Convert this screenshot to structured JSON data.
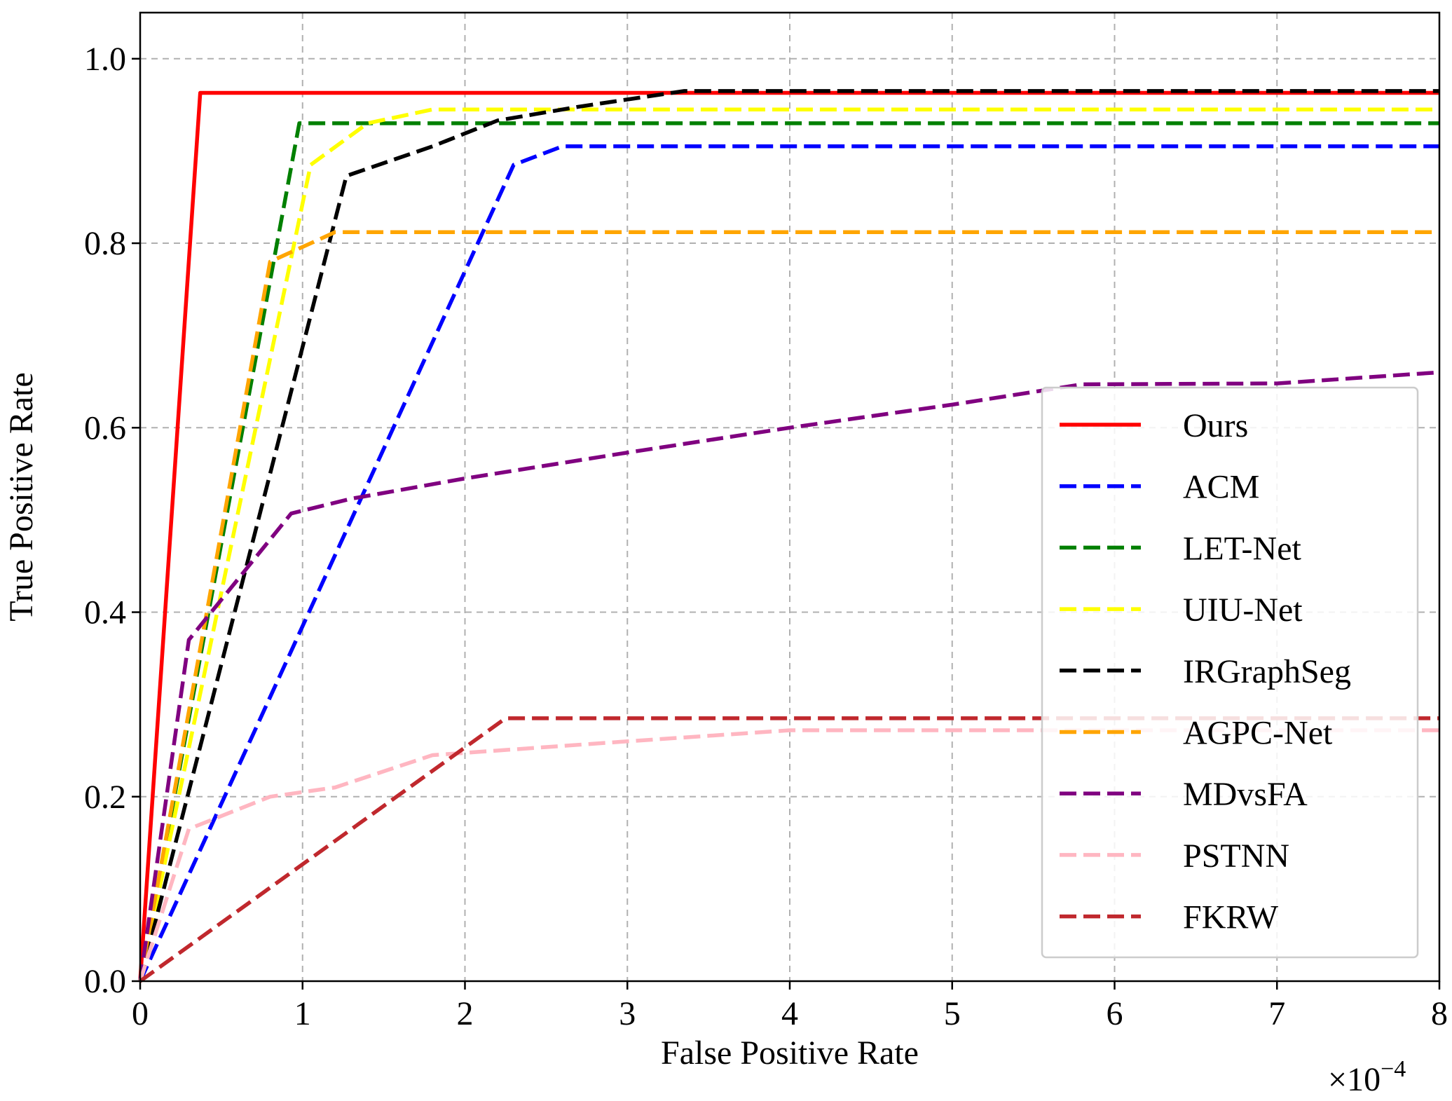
{
  "chart_data": {
    "type": "line",
    "title": "",
    "xlabel": "False Positive Rate",
    "ylabel": "True Positive Rate",
    "x_scale_label": {
      "base": "×10",
      "exponent": "−4"
    },
    "xlim": [
      0,
      8
    ],
    "ylim": [
      0,
      1.05
    ],
    "xticks": [
      0,
      1,
      2,
      3,
      4,
      5,
      6,
      7,
      8
    ],
    "xtick_labels": [
      "0",
      "1",
      "2",
      "3",
      "4",
      "5",
      "6",
      "7",
      "8"
    ],
    "yticks": [
      0,
      0.2,
      0.4,
      0.6,
      0.8,
      1.0
    ],
    "ytick_labels": [
      "0.0",
      "0.2",
      "0.4",
      "0.6",
      "0.8",
      "1.0"
    ],
    "grid": true,
    "legend_position": "lower-right",
    "series": [
      {
        "name": "Ours",
        "color": "#ff0000",
        "dashed": false,
        "x": [
          0,
          0.37,
          8
        ],
        "y": [
          0,
          0.963,
          0.963
        ]
      },
      {
        "name": "ACM",
        "color": "#0000ff",
        "dashed": true,
        "x": [
          0,
          2.3,
          2.6,
          8
        ],
        "y": [
          0,
          0.885,
          0.905,
          0.905
        ]
      },
      {
        "name": "LET-Net",
        "color": "#008000",
        "dashed": true,
        "x": [
          0,
          0.98,
          8
        ],
        "y": [
          0,
          0.93,
          0.93
        ]
      },
      {
        "name": "UIU-Net",
        "color": "#ffff00",
        "dashed": true,
        "x": [
          0,
          1.05,
          1.4,
          1.8,
          8
        ],
        "y": [
          0,
          0.885,
          0.93,
          0.945,
          0.945
        ]
      },
      {
        "name": "IRGraphSeg",
        "color": "#000000",
        "dashed": true,
        "x": [
          0,
          1.27,
          1.8,
          2.2,
          2.7,
          3.35,
          8
        ],
        "y": [
          0,
          0.873,
          0.905,
          0.933,
          0.948,
          0.965,
          0.965
        ]
      },
      {
        "name": "AGPC-Net",
        "color": "#ffa500",
        "dashed": true,
        "x": [
          0,
          0.8,
          1.2,
          8
        ],
        "y": [
          0,
          0.78,
          0.812,
          0.812
        ]
      },
      {
        "name": "MDvsFA",
        "color": "#800080",
        "dashed": true,
        "x": [
          0,
          0.3,
          0.93,
          1.3,
          2,
          3,
          4,
          5,
          5.8,
          7,
          8
        ],
        "y": [
          0,
          0.37,
          0.507,
          0.523,
          0.545,
          0.573,
          0.6,
          0.625,
          0.647,
          0.648,
          0.66
        ]
      },
      {
        "name": "PSTNN",
        "color": "#ffb6c1",
        "dashed": true,
        "x": [
          0,
          0.3,
          0.8,
          1.2,
          1.8,
          3,
          4,
          8
        ],
        "y": [
          0,
          0.165,
          0.2,
          0.21,
          0.245,
          0.26,
          0.272,
          0.272
        ]
      },
      {
        "name": "FKRW",
        "color": "#c0282d",
        "dashed": true,
        "x": [
          0,
          2.25,
          8
        ],
        "y": [
          0,
          0.285,
          0.285
        ]
      }
    ]
  }
}
